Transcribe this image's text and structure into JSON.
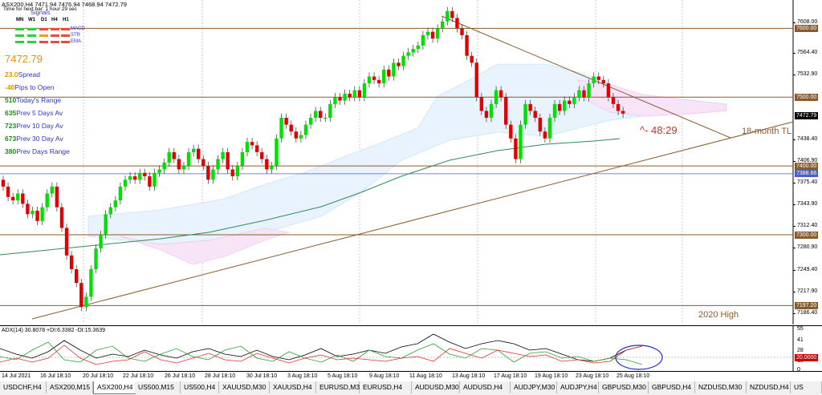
{
  "header": {
    "title": "ASX200,H4  7471.94 7476.94 7468.94 7472.79",
    "subtitle": "Time for next bar: 1 hour 29 sec",
    "signals_label": "Signals"
  },
  "signal_panel": {
    "timeframes": [
      "MN",
      "W1",
      "D1",
      "H4",
      "H1"
    ],
    "rows": [
      "MACD",
      "STR",
      "EMA"
    ]
  },
  "info_panel": {
    "price": "7472.79",
    "spread_value": "23.0",
    "spread_label": "Spread",
    "pips_value": "-40",
    "pips_label": "Pips to Open",
    "today_value": "510",
    "today_label": "Today's Range",
    "prev5_value": "635",
    "prev5_label": "Prev 5 Days Av",
    "prev10_value": "723",
    "prev10_label": "Prev 10 Day Av",
    "prev30_value": "673",
    "prev30_label": "Prev 30 Day Av",
    "prevday_value": "380",
    "prevday_label": "Prev Days Range"
  },
  "annotations": {
    "countdown": "^- 48:29",
    "trendline": "18-month TL",
    "high": "2020 High"
  },
  "price_axis": {
    "ticks": [
      "7608.00",
      "7564.40",
      "7532.90",
      "7438.40",
      "7406.90",
      "7375.40",
      "7343.90",
      "7312.40",
      "7280.90",
      "7249.40",
      "7217.90",
      "7186.40"
    ],
    "badges": [
      {
        "text": "7600.00",
        "color": "#8b5a2b"
      },
      {
        "text": "7500.00",
        "color": "#8b5a2b"
      },
      {
        "text": "7472.79",
        "color": "#000000"
      },
      {
        "text": "7400.00",
        "color": "#8b5a2b"
      },
      {
        "text": "7388.66",
        "color": "#4a5fc1"
      },
      {
        "text": "7300.00",
        "color": "#8b5a2b"
      },
      {
        "text": "7197.20",
        "color": "#8b5a2b"
      }
    ]
  },
  "indicator": {
    "label": "ADX(14) 30.8078 +DI:6.3382 -DI:15.3639",
    "ticks": [
      "55",
      "41",
      "28",
      "15",
      "0"
    ],
    "level_badge": "20.0000"
  },
  "time_axis": {
    "labels": [
      "14 Jul 2021",
      "16 Jul 18:10",
      "20 Jul 18:10",
      "22 Jul 18:10",
      "26 Jul 18:10",
      "28 Jul 18:10",
      "30 Jul 18:10",
      "3 Aug 18:10",
      "5 Aug 18:10",
      "9 Aug 18:10",
      "11 Aug 18:10",
      "13 Aug 18:10",
      "17 Aug 18:10",
      "19 Aug 18:10",
      "23 Aug 18:10",
      "25 Aug 18:10"
    ]
  },
  "tabs": [
    "USDCHF,H4",
    "ASX200,M15",
    "ASX200,H4",
    "US500,M15",
    "US500,H4",
    "XAUUSD,M30",
    "XAUUSD,H4",
    "EURUSD,M30",
    "EURUSD,H4",
    "AUDUSD,M30",
    "AUDUSD,H4",
    "AUDJPY,M30",
    "AUDJPY,H4",
    "GBPUSD,M30",
    "GBPUSD,H4",
    "NZDUSD,M30",
    "NZDUSD,H4",
    "US"
  ],
  "active_tab": 2,
  "colors": {
    "bull": "#00e000",
    "bear": "#e00000",
    "hline": "#8b5a2b",
    "ema": "#2e8b57",
    "cloud_blue": "#9ecff5",
    "cloud_pink": "#e6a9e6"
  }
}
